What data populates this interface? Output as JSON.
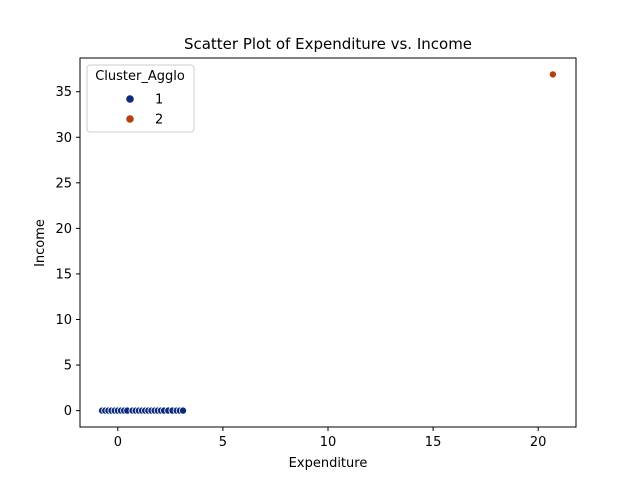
{
  "chart_data": {
    "type": "scatter",
    "title": "Scatter Plot of Expenditure vs. Income",
    "xlabel": "Expenditure",
    "ylabel": "Income",
    "xlim": [
      -1.8,
      21.8
    ],
    "ylim": [
      -1.8,
      38.7
    ],
    "xticks": [
      0,
      5,
      10,
      15,
      20
    ],
    "yticks": [
      0,
      5,
      10,
      15,
      20,
      25,
      30,
      35
    ],
    "grid": false,
    "legend": {
      "title": "Cluster_Agglo",
      "placement": "top-left"
    },
    "series": [
      {
        "name": "1",
        "color": "#0c2a7d",
        "points": [
          [
            -0.75,
            0
          ],
          [
            -0.6,
            0
          ],
          [
            -0.45,
            0
          ],
          [
            -0.3,
            0
          ],
          [
            -0.15,
            0
          ],
          [
            0.0,
            0
          ],
          [
            0.15,
            0
          ],
          [
            0.3,
            0
          ],
          [
            0.45,
            0
          ],
          [
            0.7,
            0
          ],
          [
            0.85,
            0
          ],
          [
            1.0,
            0
          ],
          [
            1.15,
            0
          ],
          [
            1.3,
            0
          ],
          [
            1.45,
            0
          ],
          [
            1.6,
            0
          ],
          [
            1.75,
            0
          ],
          [
            1.9,
            0
          ],
          [
            2.05,
            0
          ],
          [
            2.2,
            0
          ],
          [
            2.4,
            0
          ],
          [
            2.6,
            0
          ],
          [
            2.8,
            0
          ],
          [
            2.95,
            0
          ],
          [
            3.1,
            0
          ]
        ]
      },
      {
        "name": "2",
        "color": "#b5400d",
        "points": [
          [
            20.7,
            36.9
          ]
        ]
      }
    ]
  }
}
